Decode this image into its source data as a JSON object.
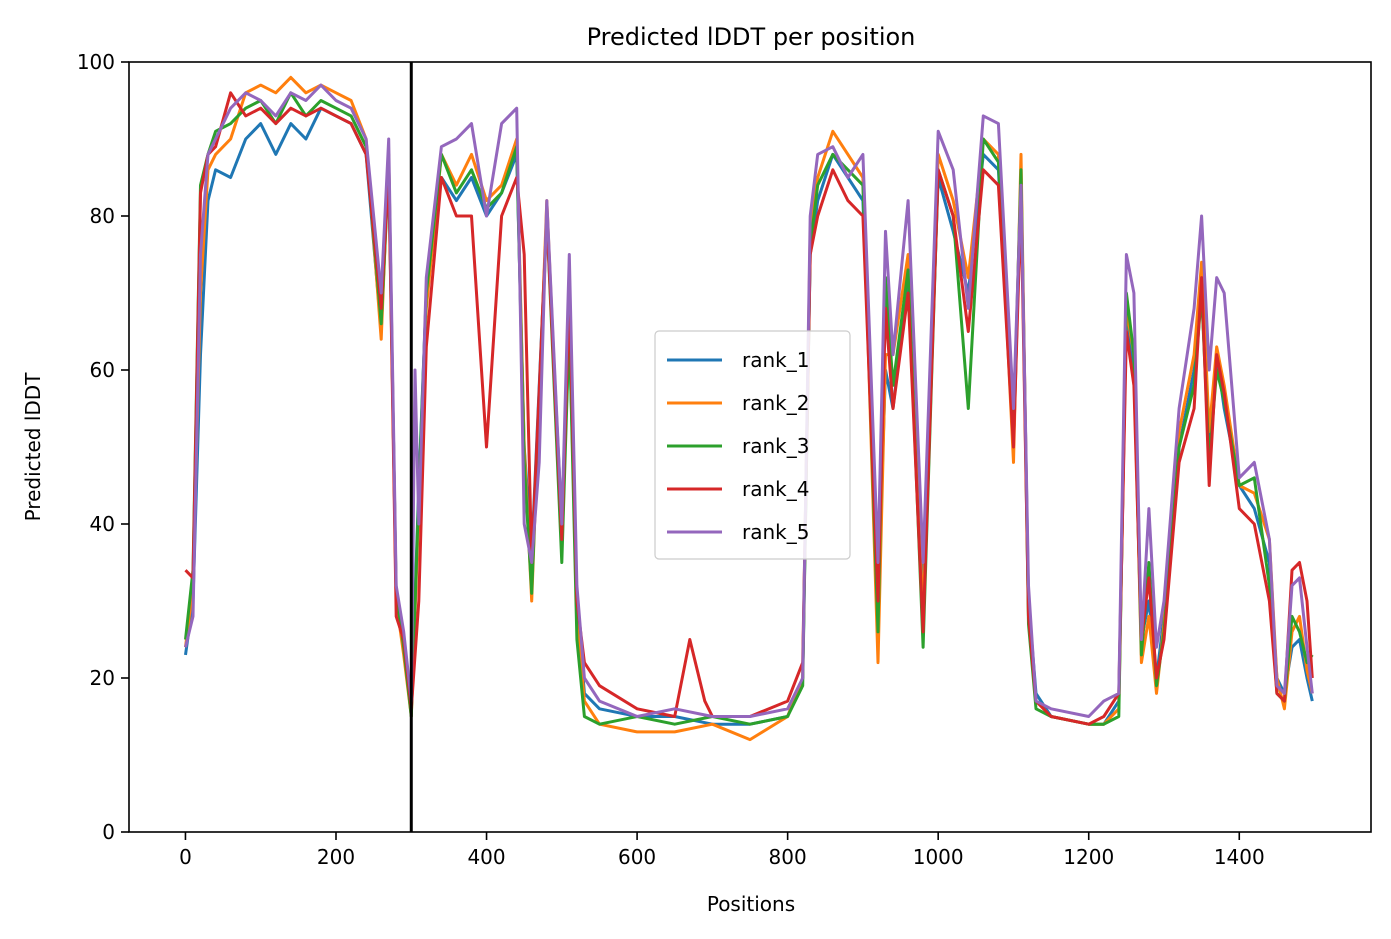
{
  "chart_data": {
    "type": "line",
    "title": "Predicted lDDT per position",
    "xlabel": "Positions",
    "ylabel": "Predicted lDDT",
    "xlim": [
      -75,
      1575
    ],
    "ylim": [
      0,
      100
    ],
    "xticks": [
      0,
      200,
      400,
      600,
      800,
      1000,
      1200,
      1400
    ],
    "yticks": [
      0,
      20,
      40,
      60,
      80,
      100
    ],
    "grid": false,
    "legend_position": "center",
    "vertical_line": {
      "x": 300,
      "color": "#000000"
    },
    "series": [
      {
        "name": "rank_1",
        "color": "#1f77b4",
        "x": [
          0,
          10,
          20,
          30,
          40,
          60,
          80,
          100,
          120,
          140,
          160,
          180,
          200,
          220,
          240,
          260,
          270,
          280,
          290,
          300,
          310,
          320,
          340,
          360,
          380,
          400,
          420,
          440,
          450,
          460,
          480,
          500,
          510,
          520,
          530,
          550,
          600,
          650,
          700,
          750,
          800,
          820,
          830,
          840,
          860,
          880,
          900,
          920,
          930,
          940,
          960,
          980,
          1000,
          1020,
          1040,
          1060,
          1080,
          1100,
          1110,
          1120,
          1130,
          1150,
          1200,
          1220,
          1240,
          1250,
          1260,
          1270,
          1280,
          1290,
          1300,
          1320,
          1340,
          1350,
          1360,
          1370,
          1380,
          1400,
          1420,
          1440,
          1450,
          1460,
          1470,
          1480,
          1490,
          1497
        ],
        "y": [
          23,
          30,
          62,
          82,
          86,
          85,
          90,
          92,
          88,
          92,
          90,
          94,
          93,
          92,
          88,
          65,
          88,
          30,
          24,
          16,
          45,
          70,
          85,
          82,
          85,
          80,
          83,
          88,
          50,
          36,
          80,
          40,
          65,
          30,
          18,
          16,
          15,
          15,
          14,
          14,
          15,
          20,
          75,
          82,
          88,
          85,
          82,
          30,
          60,
          55,
          72,
          30,
          85,
          78,
          70,
          88,
          86,
          50,
          85,
          30,
          18,
          15,
          14,
          14,
          17,
          68,
          60,
          25,
          30,
          20,
          28,
          50,
          60,
          70,
          50,
          62,
          55,
          45,
          42,
          35,
          20,
          18,
          24,
          25,
          20,
          17
        ]
      },
      {
        "name": "rank_2",
        "color": "#ff7f0e",
        "x": [
          0,
          10,
          20,
          30,
          40,
          60,
          80,
          100,
          120,
          140,
          160,
          180,
          200,
          220,
          240,
          260,
          270,
          280,
          290,
          300,
          310,
          320,
          340,
          360,
          380,
          400,
          420,
          440,
          450,
          460,
          480,
          500,
          510,
          520,
          530,
          550,
          600,
          650,
          700,
          750,
          800,
          820,
          830,
          840,
          860,
          880,
          900,
          920,
          930,
          940,
          960,
          980,
          1000,
          1020,
          1040,
          1060,
          1080,
          1100,
          1110,
          1120,
          1130,
          1150,
          1200,
          1220,
          1240,
          1250,
          1260,
          1270,
          1280,
          1290,
          1300,
          1320,
          1340,
          1350,
          1360,
          1370,
          1380,
          1400,
          1420,
          1440,
          1450,
          1460,
          1470,
          1480,
          1490,
          1497
        ],
        "y": [
          24,
          32,
          70,
          86,
          88,
          90,
          96,
          97,
          96,
          98,
          96,
          97,
          96,
          95,
          90,
          64,
          88,
          30,
          23,
          15,
          42,
          68,
          88,
          84,
          88,
          82,
          84,
          90,
          50,
          30,
          82,
          38,
          68,
          28,
          17,
          14,
          13,
          13,
          14,
          12,
          15,
          20,
          78,
          85,
          91,
          88,
          85,
          22,
          62,
          62,
          75,
          28,
          88,
          82,
          72,
          90,
          88,
          48,
          88,
          28,
          17,
          15,
          14,
          14,
          16,
          68,
          62,
          22,
          28,
          18,
          27,
          52,
          62,
          74,
          52,
          63,
          58,
          45,
          44,
          38,
          20,
          16,
          26,
          28,
          21,
          18
        ]
      },
      {
        "name": "rank_3",
        "color": "#2ca02c",
        "x": [
          0,
          10,
          20,
          30,
          40,
          60,
          80,
          100,
          120,
          140,
          160,
          180,
          200,
          220,
          240,
          260,
          270,
          280,
          290,
          300,
          310,
          320,
          340,
          360,
          380,
          400,
          420,
          440,
          450,
          460,
          480,
          500,
          510,
          520,
          530,
          550,
          600,
          650,
          700,
          750,
          800,
          820,
          830,
          840,
          860,
          880,
          900,
          920,
          930,
          940,
          960,
          980,
          1000,
          1020,
          1040,
          1060,
          1080,
          1100,
          1110,
          1120,
          1130,
          1150,
          1200,
          1220,
          1240,
          1250,
          1260,
          1270,
          1280,
          1290,
          1300,
          1320,
          1340,
          1350,
          1360,
          1370,
          1380,
          1400,
          1420,
          1440,
          1450,
          1460,
          1470,
          1480,
          1490,
          1497
        ],
        "y": [
          25,
          34,
          84,
          88,
          91,
          92,
          94,
          95,
          92,
          96,
          93,
          95,
          94,
          93,
          89,
          66,
          86,
          31,
          24,
          15,
          44,
          70,
          88,
          83,
          86,
          81,
          83,
          89,
          48,
          31,
          80,
          35,
          66,
          25,
          15,
          14,
          15,
          14,
          15,
          14,
          15,
          19,
          76,
          84,
          88,
          86,
          84,
          26,
          72,
          58,
          73,
          24,
          86,
          80,
          55,
          90,
          87,
          52,
          86,
          27,
          16,
          15,
          14,
          14,
          15,
          70,
          62,
          23,
          35,
          19,
          26,
          50,
          58,
          70,
          48,
          60,
          56,
          45,
          46,
          32,
          18,
          17,
          28,
          26,
          22,
          23
        ]
      },
      {
        "name": "rank_4",
        "color": "#d62728",
        "x": [
          0,
          10,
          20,
          30,
          40,
          60,
          80,
          100,
          120,
          140,
          160,
          180,
          200,
          220,
          240,
          260,
          270,
          280,
          290,
          300,
          310,
          320,
          340,
          360,
          380,
          400,
          420,
          440,
          450,
          460,
          480,
          500,
          510,
          520,
          530,
          550,
          600,
          650,
          670,
          690,
          700,
          750,
          800,
          820,
          830,
          840,
          860,
          880,
          900,
          920,
          930,
          940,
          960,
          980,
          1000,
          1020,
          1040,
          1060,
          1080,
          1100,
          1110,
          1120,
          1130,
          1150,
          1200,
          1220,
          1240,
          1250,
          1260,
          1270,
          1280,
          1290,
          1300,
          1320,
          1340,
          1350,
          1360,
          1370,
          1380,
          1400,
          1420,
          1440,
          1450,
          1460,
          1470,
          1480,
          1490,
          1497
        ],
        "y": [
          34,
          33,
          83,
          88,
          89,
          96,
          93,
          94,
          92,
          94,
          93,
          94,
          93,
          92,
          88,
          68,
          86,
          28,
          25,
          16,
          30,
          63,
          85,
          80,
          80,
          50,
          80,
          85,
          75,
          35,
          80,
          38,
          70,
          30,
          22,
          19,
          16,
          15,
          25,
          17,
          15,
          15,
          17,
          22,
          75,
          80,
          86,
          82,
          80,
          30,
          68,
          55,
          70,
          26,
          86,
          80,
          65,
          86,
          84,
          50,
          82,
          28,
          17,
          15,
          14,
          15,
          18,
          65,
          58,
          25,
          33,
          20,
          25,
          48,
          55,
          72,
          45,
          62,
          57,
          42,
          40,
          30,
          18,
          17,
          34,
          35,
          30,
          20
        ]
      },
      {
        "name": "rank_5",
        "color": "#9467bd",
        "x": [
          0,
          10,
          20,
          30,
          40,
          60,
          80,
          100,
          120,
          140,
          160,
          180,
          200,
          220,
          240,
          260,
          270,
          280,
          290,
          300,
          305,
          310,
          320,
          340,
          360,
          380,
          400,
          420,
          440,
          450,
          460,
          470,
          480,
          500,
          510,
          520,
          530,
          550,
          600,
          650,
          700,
          750,
          800,
          820,
          830,
          840,
          860,
          880,
          900,
          920,
          930,
          940,
          960,
          980,
          1000,
          1020,
          1040,
          1060,
          1080,
          1100,
          1110,
          1120,
          1130,
          1150,
          1200,
          1220,
          1240,
          1250,
          1260,
          1270,
          1280,
          1290,
          1300,
          1320,
          1340,
          1350,
          1360,
          1370,
          1380,
          1400,
          1420,
          1440,
          1450,
          1460,
          1470,
          1480,
          1490,
          1497
        ],
        "y": [
          24,
          28,
          75,
          88,
          90,
          94,
          96,
          95,
          93,
          96,
          95,
          97,
          95,
          94,
          90,
          70,
          90,
          32,
          26,
          17,
          60,
          40,
          72,
          89,
          90,
          92,
          80,
          92,
          94,
          40,
          35,
          48,
          82,
          40,
          75,
          32,
          20,
          17,
          15,
          16,
          15,
          15,
          16,
          20,
          80,
          88,
          89,
          85,
          88,
          35,
          78,
          62,
          82,
          35,
          91,
          86,
          68,
          93,
          92,
          55,
          84,
          32,
          17,
          16,
          15,
          17,
          18,
          75,
          70,
          25,
          42,
          24,
          30,
          55,
          68,
          80,
          60,
          72,
          70,
          46,
          48,
          38,
          19,
          18,
          32,
          33,
          24,
          18
        ]
      }
    ]
  }
}
